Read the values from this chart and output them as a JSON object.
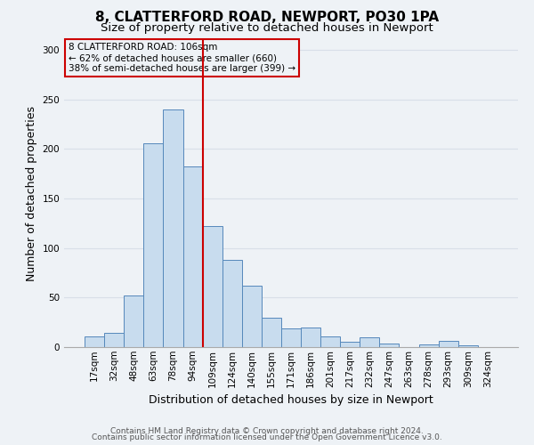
{
  "title": "8, CLATTERFORD ROAD, NEWPORT, PO30 1PA",
  "subtitle": "Size of property relative to detached houses in Newport",
  "xlabel": "Distribution of detached houses by size in Newport",
  "ylabel": "Number of detached properties",
  "bar_color": "#c8dcee",
  "bar_edge_color": "#5588bb",
  "categories": [
    "17sqm",
    "32sqm",
    "48sqm",
    "63sqm",
    "78sqm",
    "94sqm",
    "109sqm",
    "124sqm",
    "140sqm",
    "155sqm",
    "171sqm",
    "186sqm",
    "201sqm",
    "217sqm",
    "232sqm",
    "247sqm",
    "263sqm",
    "278sqm",
    "293sqm",
    "309sqm",
    "324sqm"
  ],
  "values": [
    11,
    14,
    52,
    206,
    240,
    182,
    122,
    88,
    62,
    30,
    19,
    20,
    11,
    5,
    10,
    4,
    0,
    3,
    6,
    2,
    0
  ],
  "ylim": [
    0,
    310
  ],
  "yticks": [
    0,
    50,
    100,
    150,
    200,
    250,
    300
  ],
  "vline_index": 6,
  "vline_color": "#cc0000",
  "annotation_line1": "8 CLATTERFORD ROAD: 106sqm",
  "annotation_line2": "← 62% of detached houses are smaller (660)",
  "annotation_line3": "38% of semi-detached houses are larger (399) →",
  "annotation_box_edge_color": "#cc0000",
  "footer_line1": "Contains HM Land Registry data © Crown copyright and database right 2024.",
  "footer_line2": "Contains public sector information licensed under the Open Government Licence v3.0.",
  "background_color": "#eef2f6",
  "grid_color": "#d8dfe8",
  "title_fontsize": 11,
  "subtitle_fontsize": 9.5,
  "label_fontsize": 9,
  "tick_fontsize": 7.5,
  "footer_fontsize": 6.5
}
